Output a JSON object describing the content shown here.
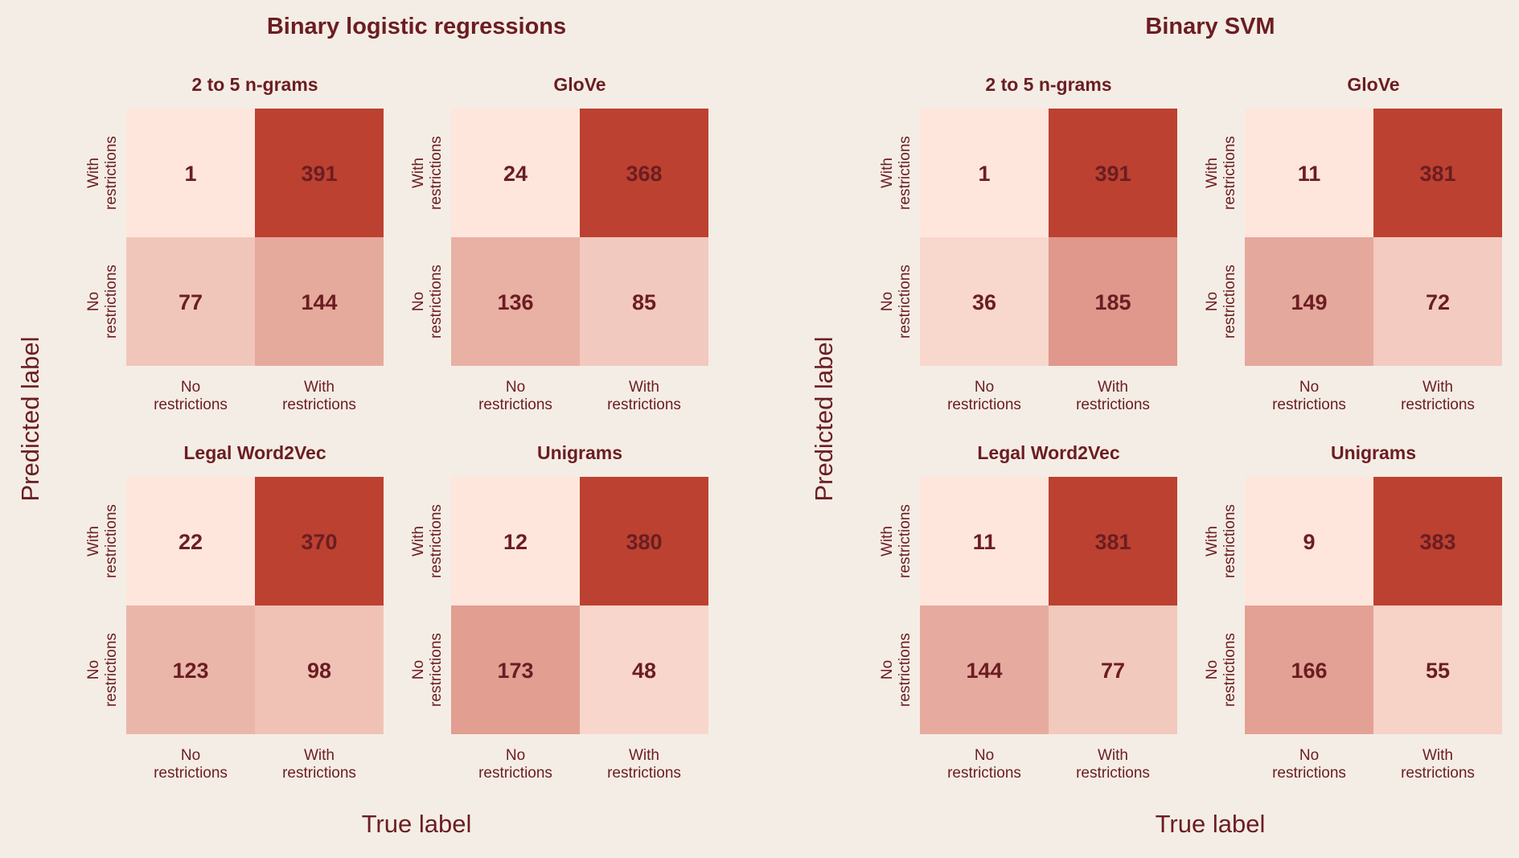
{
  "colors": {
    "background": "#f4ede5",
    "text": "#6b1d22",
    "cmap_low": "#fee6dc",
    "cmap_high": "#bc4130"
  },
  "chart_data": [
    {
      "type": "heatmap",
      "title": "Binary logistic regressions",
      "xlabel": "True label",
      "ylabel": "Predicted label",
      "x_categories": [
        "No\nrestrictions",
        "With\nrestrictions"
      ],
      "y_categories": [
        "With\nrestrictions",
        "No\nrestrictions"
      ],
      "panels": [
        {
          "title": "2 to 5 n-grams",
          "values": [
            [
              1,
              391
            ],
            [
              77,
              144
            ]
          ]
        },
        {
          "title": "GloVe",
          "values": [
            [
              24,
              368
            ],
            [
              136,
              85
            ]
          ]
        },
        {
          "title": "Legal Word2Vec",
          "values": [
            [
              22,
              370
            ],
            [
              123,
              98
            ]
          ]
        },
        {
          "title": "Unigrams",
          "values": [
            [
              12,
              380
            ],
            [
              173,
              48
            ]
          ]
        }
      ],
      "grid": false,
      "colorbar": false
    },
    {
      "type": "heatmap",
      "title": "Binary SVM",
      "xlabel": "True label",
      "ylabel": "Predicted label",
      "x_categories": [
        "No\nrestrictions",
        "With\nrestrictions"
      ],
      "y_categories": [
        "With\nrestrictions",
        "No\nrestrictions"
      ],
      "panels": [
        {
          "title": "2 to 5 n-grams",
          "values": [
            [
              1,
              391
            ],
            [
              36,
              185
            ]
          ]
        },
        {
          "title": "GloVe",
          "values": [
            [
              11,
              381
            ],
            [
              149,
              72
            ]
          ]
        },
        {
          "title": "Legal Word2Vec",
          "values": [
            [
              11,
              381
            ],
            [
              144,
              77
            ]
          ]
        },
        {
          "title": "Unigrams",
          "values": [
            [
              9,
              383
            ],
            [
              166,
              55
            ]
          ]
        }
      ],
      "grid": false,
      "colorbar": false
    }
  ]
}
